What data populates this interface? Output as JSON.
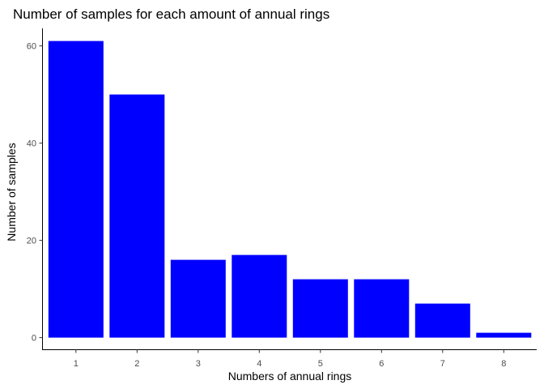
{
  "chart_data": {
    "type": "bar",
    "title": "Number of samples for each amount of annual rings",
    "xlabel": "Numbers of annual rings",
    "ylabel": "Number of samples",
    "categories": [
      "1",
      "2",
      "3",
      "4",
      "5",
      "6",
      "7",
      "8"
    ],
    "values": [
      61,
      50,
      16,
      17,
      12,
      12,
      7,
      1
    ],
    "y_ticks": [
      "0",
      "20",
      "40",
      "60"
    ],
    "ylim": [
      0,
      64
    ],
    "bar_color": "#0000ff",
    "grid": false,
    "legend": "none"
  }
}
